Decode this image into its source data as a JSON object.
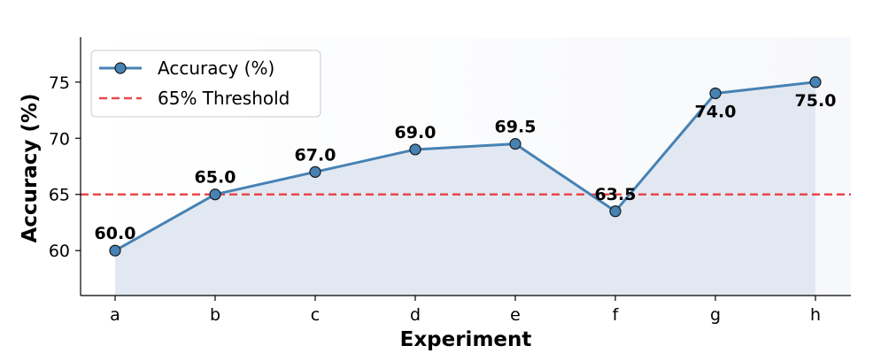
{
  "chart_data": {
    "type": "line",
    "title": "",
    "xlabel": "Experiment",
    "ylabel": "Accuracy (%)",
    "categories": [
      "a",
      "b",
      "c",
      "d",
      "e",
      "f",
      "g",
      "h"
    ],
    "series": [
      {
        "name": "Accuracy (%)",
        "values": [
          60.0,
          65.0,
          67.0,
          69.0,
          69.5,
          63.5,
          74.0,
          75.0
        ],
        "labels": [
          "60.0",
          "65.0",
          "67.0",
          "69.0",
          "69.5",
          "63.5",
          "74.0",
          "75.0"
        ],
        "color": "#4682b4",
        "fill_color": "#dfe6f1"
      }
    ],
    "reference_line": {
      "name": "65% Threshold",
      "value": 65,
      "color": "#e8484b",
      "style": "dashed"
    },
    "ylim": [
      56,
      79
    ],
    "yticks": [
      60,
      65,
      70,
      75
    ],
    "ytick_labels": [
      "60",
      "65",
      "70",
      "75"
    ],
    "legend_placement": "top-left",
    "grid": false
  }
}
